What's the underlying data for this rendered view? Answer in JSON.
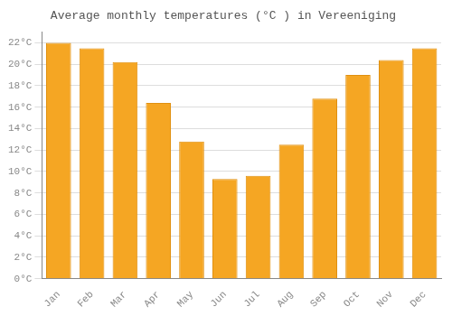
{
  "chart_data": {
    "type": "bar",
    "title": "Average monthly temperatures (°C ) in Vereeniging",
    "categories": [
      "Jan",
      "Feb",
      "Mar",
      "Apr",
      "May",
      "Jun",
      "Jul",
      "Aug",
      "Sep",
      "Oct",
      "Nov",
      "Dec"
    ],
    "values": [
      22.0,
      21.5,
      20.2,
      16.4,
      12.8,
      9.3,
      9.6,
      12.5,
      16.8,
      19.0,
      20.4,
      21.5
    ],
    "color": "#F5A623",
    "ylim": [
      0,
      23
    ],
    "yticks": [
      {
        "value": 0,
        "label": "0°C"
      },
      {
        "value": 2,
        "label": "2°C"
      },
      {
        "value": 4,
        "label": "4°C"
      },
      {
        "value": 6,
        "label": "6°C"
      },
      {
        "value": 8,
        "label": "8°C"
      },
      {
        "value": 10,
        "label": "10°C"
      },
      {
        "value": 12,
        "label": "12°C"
      },
      {
        "value": 14,
        "label": "14°C"
      },
      {
        "value": 16,
        "label": "16°C"
      },
      {
        "value": 18,
        "label": "18°C"
      },
      {
        "value": 20,
        "label": "20°C"
      },
      {
        "value": 22,
        "label": "22°C"
      }
    ],
    "grid": true
  }
}
